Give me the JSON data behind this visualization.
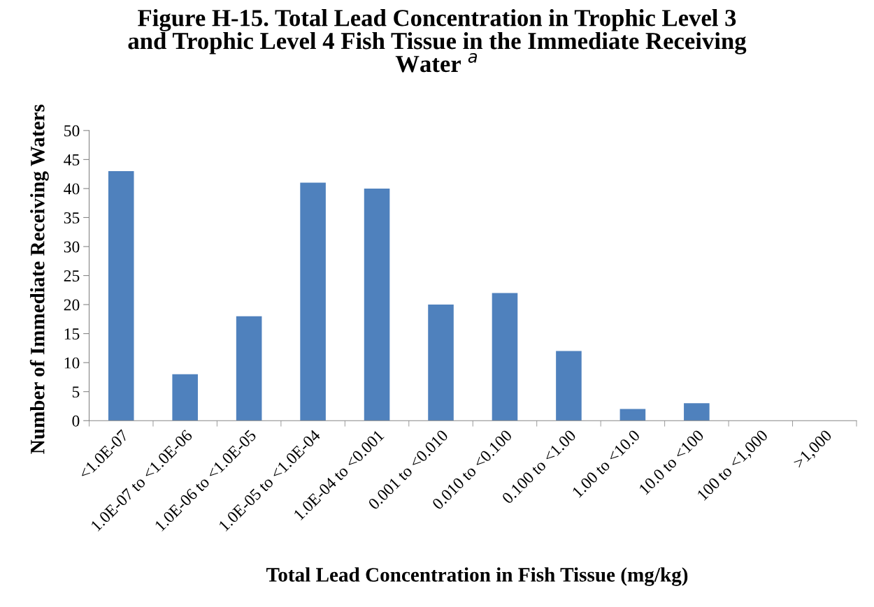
{
  "chart_data": {
    "type": "bar",
    "title": "Figure H-15. Total Lead Concentration in Trophic Level 3\nand Trophic Level 4 Fish Tissue in the Immediate Receiving\nWater $^{a}$",
    "xlabel": "Total Lead Concentration in Fish Tissue (mg/kg)",
    "ylabel": "Number of Immediate Receiving Waters",
    "categories": [
      "<1.0E-07",
      "1.0E-07 to <1.0E-06",
      "1.0E-06 to <1.0E-05",
      "1.0E-05 to <1.0E-04",
      "1.0E-04 to <0.001",
      "0.001 to <0.010",
      "0.010 to <0.100",
      "0.100 to <1.00",
      "1.00 to <10.0",
      "10.0 to <100",
      "100 to <1,000",
      ">1,000"
    ],
    "values": [
      43,
      8,
      18,
      41,
      40,
      20,
      22,
      12,
      2,
      3,
      0,
      0
    ],
    "color": "#4f81bd",
    "ylim": [
      0,
      50
    ],
    "yticks": [
      0,
      5,
      10,
      15,
      20,
      25,
      30,
      35,
      40,
      45,
      50
    ],
    "grid": false,
    "legend": false
  }
}
